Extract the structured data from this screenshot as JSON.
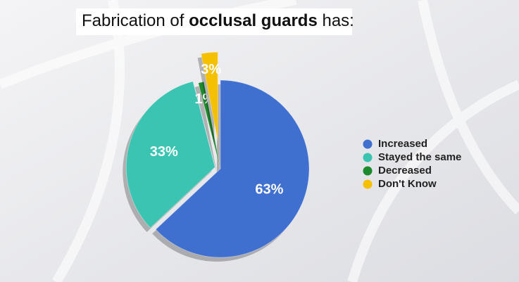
{
  "chart_data": {
    "type": "pie",
    "title": [
      {
        "text": "Fabrication of "
      },
      {
        "text": "occlusal guards",
        "bold": true
      },
      {
        "text": " has:"
      }
    ],
    "categories": [
      "Increased",
      "Stayed the same",
      "Decreased",
      "Don't Know"
    ],
    "values": [
      63,
      33,
      1,
      3
    ],
    "value_labels": [
      "63%",
      "33%",
      "1%",
      "3%"
    ],
    "colors": [
      "#3f6fcf",
      "#3cc4b2",
      "#1e8a2e",
      "#f5c000"
    ],
    "legend": "right"
  }
}
